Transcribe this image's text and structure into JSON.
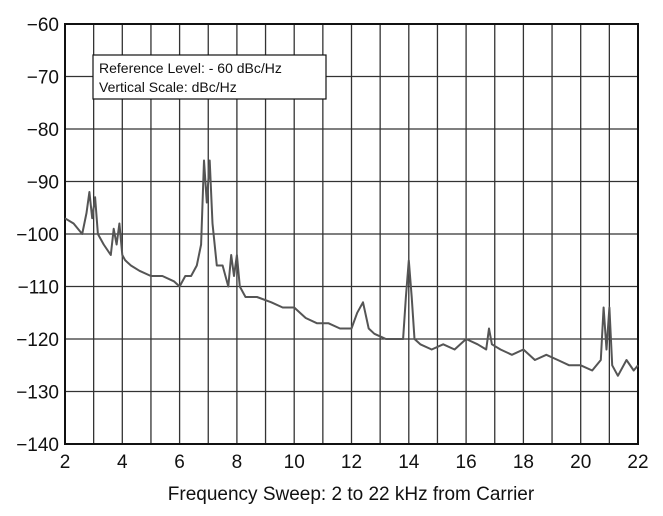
{
  "chart_data": {
    "type": "line",
    "xlabel": "Frequency Sweep: 2 to 22 kHz from Carrier",
    "ylabel": "",
    "xlim": [
      2,
      22
    ],
    "ylim": [
      -140,
      -60
    ],
    "x_ticks": [
      "2",
      "4",
      "6",
      "8",
      "10",
      "12",
      "14",
      "16",
      "18",
      "20",
      "22"
    ],
    "y_ticks": [
      "−60",
      "−70",
      "−80",
      "−90",
      "−100",
      "−110",
      "−120",
      "−130",
      "−140"
    ],
    "x_grid_step": 1,
    "grid": true,
    "legend_position": "top-left",
    "annotations": [
      "Reference Level: - 60 dBc/Hz",
      "Vertical Scale: dBc/Hz"
    ],
    "line_color": "#555555",
    "series": [
      {
        "x": [
          2.0,
          2.3,
          2.6,
          2.75,
          2.85,
          2.95,
          3.05,
          3.15,
          3.35,
          3.6,
          3.7,
          3.8,
          3.9,
          4.0,
          4.1,
          4.3,
          4.6,
          5.0,
          5.4,
          5.8,
          6.0,
          6.2,
          6.4,
          6.6,
          6.75,
          6.85,
          6.95,
          7.05,
          7.15,
          7.3,
          7.5,
          7.7,
          7.8,
          7.9,
          8.0,
          8.1,
          8.3,
          8.7,
          9.2,
          9.6,
          10.0,
          10.4,
          10.8,
          11.2,
          11.6,
          12.0,
          12.2,
          12.4,
          12.6,
          12.8,
          13.2,
          13.6,
          13.8,
          13.9,
          14.0,
          14.1,
          14.2,
          14.4,
          14.8,
          15.2,
          15.6,
          16.0,
          16.4,
          16.7,
          16.8,
          16.9,
          17.2,
          17.6,
          18.0,
          18.4,
          18.8,
          19.2,
          19.6,
          20.0,
          20.4,
          20.7,
          20.8,
          20.9,
          21.0,
          21.1,
          21.3,
          21.6,
          21.85,
          22.0
        ],
        "y": [
          -97,
          -98,
          -100,
          -96,
          -92,
          -97,
          -93,
          -100,
          -102,
          -104,
          -99,
          -102,
          -98,
          -104,
          -105,
          -106,
          -107,
          -108,
          -108,
          -109,
          -110,
          -108,
          -108,
          -106,
          -102,
          -86,
          -94,
          -86,
          -98,
          -106,
          -106,
          -110,
          -104,
          -108,
          -104,
          -110,
          -112,
          -112,
          -113,
          -114,
          -114,
          -116,
          -117,
          -117,
          -118,
          -118,
          -115,
          -113,
          -118,
          -119,
          -120,
          -120,
          -120,
          -112,
          -105,
          -112,
          -120,
          -121,
          -122,
          -121,
          -122,
          -120,
          -121,
          -122,
          -118,
          -121,
          -122,
          -123,
          -122,
          -124,
          -123,
          -124,
          -125,
          -125,
          -126,
          -124,
          -114,
          -122,
          -114,
          -125,
          -127,
          -124,
          -126,
          -125
        ]
      }
    ]
  }
}
